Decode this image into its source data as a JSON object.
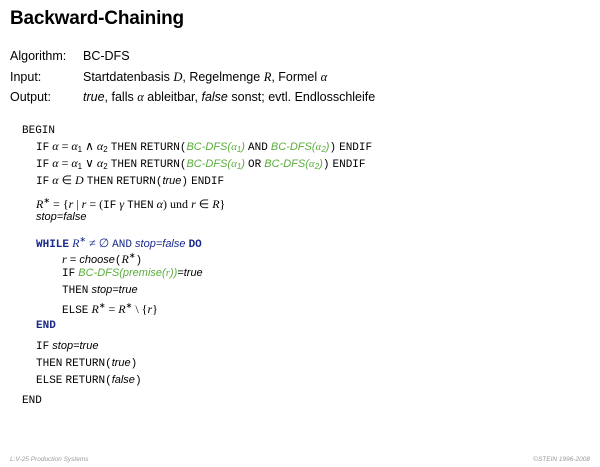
{
  "title": "Backward-Chaining",
  "meta": {
    "algorithm_label": "Algorithm:",
    "algorithm_value": "BC-DFS",
    "input_label": "Input:",
    "input_text_1": "Startdatenbasis",
    "input_D": "D",
    "input_text_2": ", Regelmenge",
    "input_R": "R",
    "input_text_3": ", Formel",
    "input_alpha": "α",
    "output_label": "Output:",
    "output_true": "true",
    "output_text_1": ", falls",
    "output_alpha": "α",
    "output_text_2": "ableitbar,",
    "output_false": "false",
    "output_text_3": "sonst; evtl. Endlosschleife"
  },
  "code": {
    "begin": "BEGIN",
    "if": "IF",
    "then": "THEN",
    "else": "ELSE",
    "return": "RETURN",
    "endif": "ENDIF",
    "and_kw": "AND",
    "or_kw": "OR",
    "while": "WHILE",
    "do": "DO",
    "end_block": "END",
    "end": "END",
    "bc_dfs": "BC-DFS",
    "cond_and": "α = α₁ ∧ α₂",
    "cond_or": "α = α₁ ∨ α₂",
    "cond_in": "α ∈ D",
    "alpha1": "α₁",
    "alpha2": "α₂",
    "true": "true",
    "false": "false",
    "rstar_def_1": "R* = {r | r = (",
    "rstar_gamma": "γ",
    "rstar_alpha": "α",
    "rstar_und": "und",
    "rstar_def_2": "r ∈ R}",
    "stop_false": "stop=false",
    "while_cond": "R* ≠ ∅",
    "stop_false_w": "stop=false",
    "r_assign": "r",
    "eq": "=",
    "choose": "choose",
    "choose_arg": "R*",
    "premise": "premise",
    "premise_arg": "r",
    "eq_true": "=true",
    "stop_true": "stop=true",
    "else_assign": "R* = R* \\ {r}",
    "if_stop_true": "stop=true"
  },
  "footer": {
    "left": "L:V-25   Production Systems",
    "right": "©STEIN 1996-2008"
  }
}
